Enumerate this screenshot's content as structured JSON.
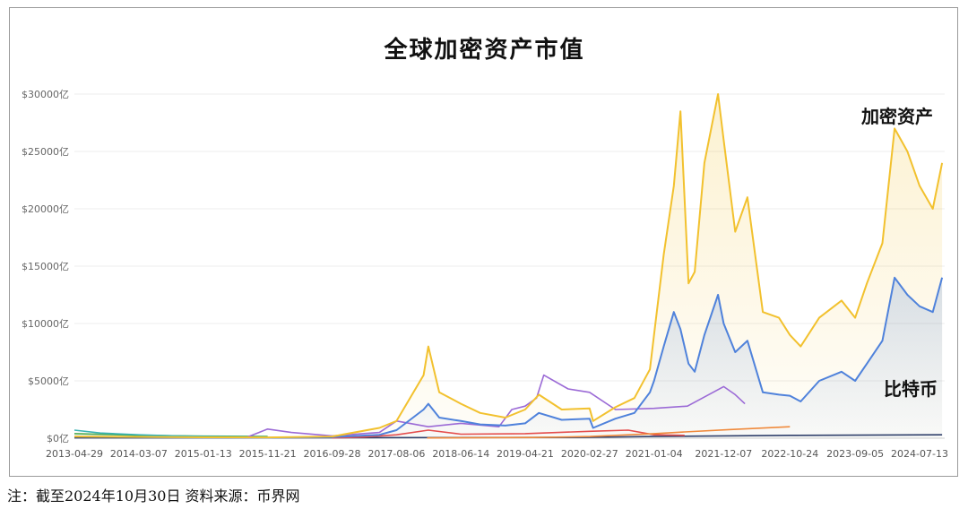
{
  "chart_data": {
    "type": "line",
    "title": "全球加密资产市值",
    "y_unit": "亿美元",
    "ylim": [
      0,
      30000
    ],
    "y_ticks": [
      "$0亿",
      "$5000亿",
      "$10000亿",
      "$15000亿",
      "$20000亿",
      "$25000亿",
      "$30000亿"
    ],
    "x_ticks": [
      "2013-04-29",
      "2014-03-07",
      "2015-01-13",
      "2015-11-21",
      "2016-09-28",
      "2017-08-06",
      "2018-06-14",
      "2019-04-21",
      "2020-02-27",
      "2021-01-04",
      "2021-12-07",
      "2022-10-24",
      "2023-09-05",
      "2024-07-13"
    ],
    "grid": true,
    "legend": "none",
    "series": [
      {
        "name": "加密资产",
        "color": "#f2c12e",
        "points": [
          [
            "2013-04-29",
            150
          ],
          [
            "2014-03-07",
            120
          ],
          [
            "2015-01-13",
            80
          ],
          [
            "2015-11-21",
            70
          ],
          [
            "2016-09-28",
            150
          ],
          [
            "2017-05-15",
            900
          ],
          [
            "2017-08-06",
            1500
          ],
          [
            "2017-12-15",
            5500
          ],
          [
            "2018-01-07",
            8000
          ],
          [
            "2018-03-01",
            4000
          ],
          [
            "2018-06-14",
            3000
          ],
          [
            "2018-09-15",
            2200
          ],
          [
            "2019-01-15",
            1800
          ],
          [
            "2019-04-21",
            2500
          ],
          [
            "2019-06-26",
            3800
          ],
          [
            "2019-10-15",
            2500
          ],
          [
            "2020-02-27",
            2600
          ],
          [
            "2020-03-15",
            1500
          ],
          [
            "2020-07-01",
            2700
          ],
          [
            "2020-10-01",
            3500
          ],
          [
            "2020-12-15",
            6000
          ],
          [
            "2021-01-04",
            9000
          ],
          [
            "2021-02-20",
            16000
          ],
          [
            "2021-04-10",
            22000
          ],
          [
            "2021-05-12",
            28500
          ],
          [
            "2021-06-20",
            13500
          ],
          [
            "2021-07-20",
            14500
          ],
          [
            "2021-09-05",
            24000
          ],
          [
            "2021-11-10",
            30000
          ],
          [
            "2021-12-07",
            26000
          ],
          [
            "2022-02-01",
            18000
          ],
          [
            "2022-04-01",
            21000
          ],
          [
            "2022-06-15",
            11000
          ],
          [
            "2022-09-01",
            10500
          ],
          [
            "2022-10-24",
            9000
          ],
          [
            "2022-12-15",
            8000
          ],
          [
            "2023-03-15",
            10500
          ],
          [
            "2023-07-01",
            12000
          ],
          [
            "2023-09-05",
            10500
          ],
          [
            "2023-11-01",
            13500
          ],
          [
            "2024-01-15",
            17000
          ],
          [
            "2024-03-14",
            27000
          ],
          [
            "2024-05-15",
            25000
          ],
          [
            "2024-07-13",
            22000
          ],
          [
            "2024-09-15",
            20000
          ],
          [
            "2024-10-30",
            24000
          ]
        ]
      },
      {
        "name": "比特币",
        "color": "#4f82db",
        "points": [
          [
            "2013-04-29",
            150
          ],
          [
            "2014-03-07",
            100
          ],
          [
            "2015-01-13",
            60
          ],
          [
            "2015-11-21",
            50
          ],
          [
            "2016-09-28",
            100
          ],
          [
            "2017-05-15",
            300
          ],
          [
            "2017-08-06",
            700
          ],
          [
            "2017-12-15",
            2500
          ],
          [
            "2018-01-07",
            3000
          ],
          [
            "2018-03-01",
            1800
          ],
          [
            "2018-06-14",
            1500
          ],
          [
            "2018-09-15",
            1200
          ],
          [
            "2019-01-15",
            1100
          ],
          [
            "2019-04-21",
            1300
          ],
          [
            "2019-06-26",
            2200
          ],
          [
            "2019-10-15",
            1600
          ],
          [
            "2020-02-27",
            1700
          ],
          [
            "2020-03-15",
            900
          ],
          [
            "2020-07-01",
            1700
          ],
          [
            "2020-10-01",
            2200
          ],
          [
            "2020-12-15",
            4000
          ],
          [
            "2021-01-04",
            5000
          ],
          [
            "2021-02-20",
            8000
          ],
          [
            "2021-04-10",
            11000
          ],
          [
            "2021-05-12",
            9500
          ],
          [
            "2021-06-20",
            6500
          ],
          [
            "2021-07-20",
            5800
          ],
          [
            "2021-09-05",
            9000
          ],
          [
            "2021-11-10",
            12500
          ],
          [
            "2021-12-07",
            10000
          ],
          [
            "2022-02-01",
            7500
          ],
          [
            "2022-04-01",
            8500
          ],
          [
            "2022-06-15",
            4000
          ],
          [
            "2022-09-01",
            3800
          ],
          [
            "2022-10-24",
            3700
          ],
          [
            "2022-12-15",
            3200
          ],
          [
            "2023-03-15",
            5000
          ],
          [
            "2023-07-01",
            5800
          ],
          [
            "2023-09-05",
            5000
          ],
          [
            "2023-11-01",
            6500
          ],
          [
            "2024-01-15",
            8500
          ],
          [
            "2024-03-14",
            14000
          ],
          [
            "2024-05-15",
            12500
          ],
          [
            "2024-07-13",
            11500
          ],
          [
            "2024-09-15",
            11000
          ],
          [
            "2024-10-30",
            14000
          ]
        ]
      },
      {
        "color": "#9b6ad6",
        "points": [
          [
            "2015-08-01",
            0
          ],
          [
            "2015-11-21",
            800
          ],
          [
            "2016-03-15",
            500
          ],
          [
            "2016-09-28",
            200
          ],
          [
            "2017-05-15",
            500
          ],
          [
            "2017-08-06",
            1500
          ],
          [
            "2018-01-07",
            1000
          ],
          [
            "2018-06-14",
            1300
          ],
          [
            "2018-12-15",
            1000
          ],
          [
            "2019-02-15",
            2500
          ],
          [
            "2019-04-21",
            2800
          ],
          [
            "2019-06-15",
            3500
          ],
          [
            "2019-07-20",
            5500
          ],
          [
            "2019-11-15",
            4300
          ],
          [
            "2020-02-27",
            4000
          ],
          [
            "2020-07-01",
            2500
          ],
          [
            "2021-01-04",
            2600
          ],
          [
            "2021-06-15",
            2800
          ],
          [
            "2021-12-07",
            4500
          ],
          [
            "2022-02-01",
            3800
          ],
          [
            "2022-03-20",
            3000
          ]
        ]
      },
      {
        "color": "#f08a3c",
        "points": [
          [
            "2018-01-01",
            20
          ],
          [
            "2019-06-01",
            60
          ],
          [
            "2020-03-01",
            150
          ],
          [
            "2021-01-04",
            400
          ],
          [
            "2021-06-01",
            550
          ],
          [
            "2022-01-01",
            750
          ],
          [
            "2022-10-24",
            1000
          ]
        ]
      },
      {
        "color": "#e44d4d",
        "points": [
          [
            "2016-09-28",
            20
          ],
          [
            "2017-03-01",
            100
          ],
          [
            "2017-08-06",
            300
          ],
          [
            "2018-01-07",
            700
          ],
          [
            "2018-06-14",
            350
          ],
          [
            "2019-04-21",
            400
          ],
          [
            "2020-02-27",
            600
          ],
          [
            "2020-09-01",
            700
          ],
          [
            "2021-01-04",
            300
          ],
          [
            "2021-06-01",
            250
          ]
        ]
      },
      {
        "color": "#3bb3b3",
        "points": [
          [
            "2013-04-29",
            700
          ],
          [
            "2013-09-01",
            450
          ],
          [
            "2014-03-07",
            300
          ],
          [
            "2014-09-01",
            200
          ],
          [
            "2015-01-13",
            150
          ],
          [
            "2015-11-21",
            100
          ]
        ]
      },
      {
        "color": "#47a84a",
        "points": [
          [
            "2013-04-29",
            400
          ],
          [
            "2014-03-07",
            250
          ],
          [
            "2015-01-13",
            180
          ],
          [
            "2015-11-21",
            150
          ]
        ]
      },
      {
        "color": "#2f3f6a",
        "points": [
          [
            "2013-04-29",
            30
          ],
          [
            "2016-09-28",
            40
          ],
          [
            "2020-02-27",
            80
          ],
          [
            "2021-01-04",
            150
          ],
          [
            "2022-10-24",
            250
          ],
          [
            "2024-10-30",
            300
          ]
        ]
      }
    ],
    "annotations": [
      "加密资产",
      "比特币"
    ]
  },
  "footnote": "注：截至2024年10月30日    资料来源：币界网"
}
